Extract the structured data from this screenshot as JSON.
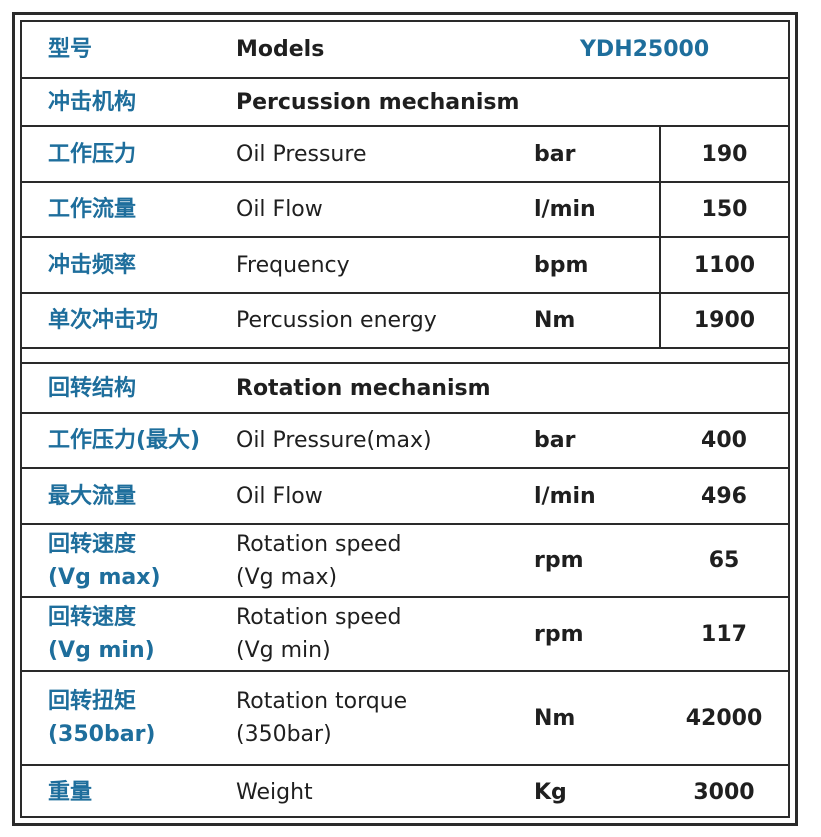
{
  "header": {
    "label_zh": "型号",
    "label_en": "Models",
    "model": "YDH25000"
  },
  "percussion": {
    "title_zh": "冲击机构",
    "title_en": "Percussion mechanism",
    "rows": [
      {
        "zh": "工作压力",
        "en": "Oil Pressure",
        "unit": "bar",
        "value": "190"
      },
      {
        "zh": "工作流量",
        "en": "Oil Flow",
        "unit": "l/min",
        "value": "150"
      },
      {
        "zh": "冲击频率",
        "en": "Frequency",
        "unit": "bpm",
        "value": "1100"
      },
      {
        "zh": "单次冲击功",
        "en": "Percussion energy",
        "unit": "Nm",
        "value": "1900"
      }
    ]
  },
  "rotation": {
    "title_zh": "回转结构",
    "title_en": "Rotation mechanism",
    "rows": [
      {
        "zh": "工作压力(最大)",
        "en": "Oil Pressure(max)",
        "unit": "bar",
        "value": "400"
      },
      {
        "zh": "最大流量",
        "en": "Oil Flow",
        "unit": "l/min",
        "value": "496"
      },
      {
        "zh1": "回转速度",
        "zh2": "(Vg max)",
        "en1": "Rotation speed",
        "en2": "(Vg max)",
        "unit": "rpm",
        "value": "65"
      },
      {
        "zh1": "回转速度",
        "zh2": "(Vg min)",
        "en1": "Rotation speed",
        "en2": "(Vg min)",
        "unit": "rpm",
        "value": "117"
      },
      {
        "zh1": "回转扭矩",
        "zh2": "(350bar)",
        "en1": "Rotation torque",
        "en2": "(350bar)",
        "unit": "Nm",
        "value": "42000"
      }
    ]
  },
  "weight": {
    "zh": "重量",
    "en": "Weight",
    "unit": "Kg",
    "value": "3000"
  }
}
